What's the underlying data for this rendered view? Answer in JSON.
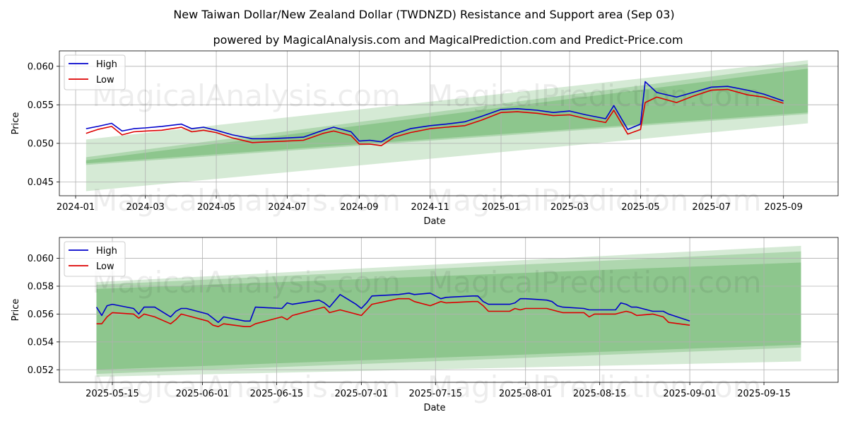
{
  "title": "New Taiwan Dollar/New Zealand Dollar (TWDNZD) Resistance and Support area (Sep 03)",
  "subtitle": "powered by MagicalAnalysis.com and MagicalPrediction.com and Predict-Price.com",
  "watermarks": [
    "MagicalAnalysis.com",
    "MagicalPrediction.com"
  ],
  "colors": {
    "high": "#0000cc",
    "low": "#dd0000",
    "band": "#3f9f3f",
    "grid": "#b0b0b0"
  },
  "chart_data": [
    {
      "type": "line",
      "xlabel": "Date",
      "ylabel": "Price",
      "x_type": "date",
      "xlim": [
        "2023-12-18",
        "2025-10-18"
      ],
      "ylim": [
        0.0432,
        0.062
      ],
      "x_ticks": [
        "2024-01-01",
        "2024-03-01",
        "2024-05-01",
        "2024-07-01",
        "2024-09-01",
        "2024-11-01",
        "2025-01-01",
        "2025-03-01",
        "2025-05-01",
        "2025-07-01",
        "2025-09-01"
      ],
      "x_tick_labels": [
        "2024-01",
        "2024-03",
        "2024-05",
        "2024-07",
        "2024-09",
        "2024-11",
        "2025-01",
        "2025-03",
        "2025-05",
        "2025-07",
        "2025-09"
      ],
      "y_ticks": [
        0.045,
        0.05,
        0.055,
        0.06
      ],
      "y_tick_labels": [
        "0.045",
        "0.050",
        "0.055",
        "0.060"
      ],
      "grid": true,
      "legend": {
        "position": "top-left",
        "entries": [
          "High",
          "Low"
        ]
      },
      "bands": [
        {
          "x": [
            "2024-01-10",
            "2025-09-22"
          ],
          "upper": [
            0.0505,
            0.0608
          ],
          "lower": [
            0.0438,
            0.0526
          ],
          "opacity": 0.22
        },
        {
          "x": [
            "2024-01-10",
            "2025-09-22"
          ],
          "upper": [
            0.0482,
            0.0603
          ],
          "lower": [
            0.0472,
            0.0538
          ],
          "opacity": 0.25
        },
        {
          "x": [
            "2024-01-10",
            "2025-09-22"
          ],
          "upper": [
            0.0478,
            0.0597
          ],
          "lower": [
            0.0474,
            0.054
          ],
          "opacity": 0.3
        }
      ],
      "series": [
        {
          "name": "High",
          "x": [
            "2024-01-10",
            "2024-01-20",
            "2024-02-01",
            "2024-02-10",
            "2024-02-20",
            "2024-03-01",
            "2024-03-15",
            "2024-04-01",
            "2024-04-10",
            "2024-04-20",
            "2024-05-01",
            "2024-05-15",
            "2024-06-01",
            "2024-06-15",
            "2024-07-01",
            "2024-07-15",
            "2024-08-01",
            "2024-08-10",
            "2024-08-25",
            "2024-09-01",
            "2024-09-10",
            "2024-09-20",
            "2024-10-01",
            "2024-10-15",
            "2024-11-01",
            "2024-11-15",
            "2024-12-01",
            "2024-12-15",
            "2025-01-01",
            "2025-01-15",
            "2025-02-01",
            "2025-02-15",
            "2025-03-01",
            "2025-03-15",
            "2025-04-01",
            "2025-04-08",
            "2025-04-20",
            "2025-05-01",
            "2025-05-05",
            "2025-05-15",
            "2025-06-01",
            "2025-06-15",
            "2025-07-01",
            "2025-07-15",
            "2025-08-01",
            "2025-08-15",
            "2025-09-01"
          ],
          "values": [
            0.0519,
            0.0522,
            0.0526,
            0.0516,
            0.0519,
            0.052,
            0.0522,
            0.0525,
            0.0519,
            0.0521,
            0.0517,
            0.0511,
            0.0506,
            0.0506,
            0.0507,
            0.0508,
            0.0517,
            0.0521,
            0.0515,
            0.0503,
            0.0504,
            0.0502,
            0.0512,
            0.0519,
            0.0523,
            0.0525,
            0.0528,
            0.0535,
            0.0544,
            0.0545,
            0.0543,
            0.054,
            0.0542,
            0.0537,
            0.0532,
            0.0549,
            0.0518,
            0.0525,
            0.058,
            0.0566,
            0.056,
            0.0566,
            0.0573,
            0.0574,
            0.0569,
            0.0564,
            0.0555
          ]
        },
        {
          "name": "Low",
          "x": [
            "2024-01-10",
            "2024-01-20",
            "2024-02-01",
            "2024-02-10",
            "2024-02-20",
            "2024-03-01",
            "2024-03-15",
            "2024-04-01",
            "2024-04-10",
            "2024-04-20",
            "2024-05-01",
            "2024-05-15",
            "2024-06-01",
            "2024-06-15",
            "2024-07-01",
            "2024-07-15",
            "2024-08-01",
            "2024-08-10",
            "2024-08-25",
            "2024-09-01",
            "2024-09-10",
            "2024-09-20",
            "2024-10-01",
            "2024-10-15",
            "2024-11-01",
            "2024-11-15",
            "2024-12-01",
            "2024-12-15",
            "2025-01-01",
            "2025-01-15",
            "2025-02-01",
            "2025-02-15",
            "2025-03-01",
            "2025-03-15",
            "2025-04-01",
            "2025-04-08",
            "2025-04-20",
            "2025-05-01",
            "2025-05-05",
            "2025-05-15",
            "2025-06-01",
            "2025-06-15",
            "2025-07-01",
            "2025-07-15",
            "2025-08-01",
            "2025-08-15",
            "2025-09-01"
          ],
          "values": [
            0.0513,
            0.0518,
            0.0522,
            0.0511,
            0.0515,
            0.0516,
            0.0517,
            0.0521,
            0.0515,
            0.0517,
            0.0514,
            0.0507,
            0.0501,
            0.0502,
            0.0503,
            0.0504,
            0.0513,
            0.0516,
            0.051,
            0.0499,
            0.0499,
            0.0497,
            0.0508,
            0.0514,
            0.0519,
            0.0521,
            0.0523,
            0.053,
            0.054,
            0.0541,
            0.0539,
            0.0536,
            0.0537,
            0.0532,
            0.0527,
            0.0543,
            0.0512,
            0.0518,
            0.0553,
            0.056,
            0.0553,
            0.0561,
            0.0569,
            0.057,
            0.0563,
            0.056,
            0.0552
          ]
        }
      ]
    },
    {
      "type": "line",
      "xlabel": "Date",
      "ylabel": "Price",
      "x_type": "date",
      "xlim": [
        "2025-05-05",
        "2025-09-29"
      ],
      "ylim": [
        0.0511,
        0.0615
      ],
      "x_ticks": [
        "2025-05-15",
        "2025-06-01",
        "2025-06-15",
        "2025-07-01",
        "2025-07-15",
        "2025-08-01",
        "2025-08-15",
        "2025-09-01",
        "2025-09-15"
      ],
      "x_tick_labels": [
        "2025-05-15",
        "2025-06-01",
        "2025-06-15",
        "2025-07-01",
        "2025-07-15",
        "2025-08-01",
        "2025-08-15",
        "2025-09-01",
        "2025-09-15"
      ],
      "y_ticks": [
        0.052,
        0.054,
        0.056,
        0.058,
        0.06
      ],
      "y_tick_labels": [
        "0.052",
        "0.054",
        "0.056",
        "0.058",
        "0.060"
      ],
      "grid": true,
      "legend": {
        "position": "top-left",
        "entries": [
          "High",
          "Low"
        ]
      },
      "bands": [
        {
          "x": [
            "2025-05-12",
            "2025-09-22"
          ],
          "upper": [
            0.0583,
            0.0609
          ],
          "lower": [
            0.0515,
            0.0526
          ],
          "opacity": 0.22
        },
        {
          "x": [
            "2025-05-12",
            "2025-09-22"
          ],
          "upper": [
            0.0581,
            0.0605
          ],
          "lower": [
            0.0517,
            0.0536
          ],
          "opacity": 0.25
        },
        {
          "x": [
            "2025-05-12",
            "2025-09-22"
          ],
          "upper": [
            0.0578,
            0.0597
          ],
          "lower": [
            0.052,
            0.0538
          ],
          "opacity": 0.3
        }
      ],
      "series": [
        {
          "name": "High",
          "x": [
            "2025-05-12",
            "2025-05-13",
            "2025-05-14",
            "2025-05-15",
            "2025-05-19",
            "2025-05-20",
            "2025-05-21",
            "2025-05-23",
            "2025-05-26",
            "2025-05-27",
            "2025-05-28",
            "2025-05-29",
            "2025-06-02",
            "2025-06-03",
            "2025-06-04",
            "2025-06-05",
            "2025-06-09",
            "2025-06-10",
            "2025-06-11",
            "2025-06-16",
            "2025-06-17",
            "2025-06-18",
            "2025-06-23",
            "2025-06-24",
            "2025-06-25",
            "2025-06-27",
            "2025-06-30",
            "2025-07-01",
            "2025-07-02",
            "2025-07-03",
            "2025-07-08",
            "2025-07-10",
            "2025-07-11",
            "2025-07-14",
            "2025-07-16",
            "2025-07-17",
            "2025-07-22",
            "2025-07-23",
            "2025-07-24",
            "2025-07-25",
            "2025-07-29",
            "2025-07-30",
            "2025-07-31",
            "2025-08-01",
            "2025-08-05",
            "2025-08-06",
            "2025-08-07",
            "2025-08-08",
            "2025-08-12",
            "2025-08-13",
            "2025-08-14",
            "2025-08-18",
            "2025-08-19",
            "2025-08-20",
            "2025-08-21",
            "2025-08-22",
            "2025-08-25",
            "2025-08-27",
            "2025-08-28",
            "2025-09-01"
          ],
          "values": [
            0.0565,
            0.0559,
            0.0566,
            0.0567,
            0.0564,
            0.056,
            0.0565,
            0.0565,
            0.0558,
            0.0562,
            0.0564,
            0.0564,
            0.056,
            0.0557,
            0.0554,
            0.0558,
            0.0555,
            0.0555,
            0.0565,
            0.0564,
            0.0568,
            0.0567,
            0.057,
            0.0568,
            0.0565,
            0.0574,
            0.0567,
            0.0564,
            0.0568,
            0.0573,
            0.0574,
            0.0575,
            0.0574,
            0.0575,
            0.0571,
            0.0572,
            0.0573,
            0.0573,
            0.0569,
            0.0567,
            0.0567,
            0.0568,
            0.0571,
            0.0571,
            0.057,
            0.0569,
            0.0566,
            0.0565,
            0.0564,
            0.0563,
            0.0563,
            0.0563,
            0.0568,
            0.0567,
            0.0565,
            0.0565,
            0.0562,
            0.0562,
            0.056,
            0.0555
          ]
        },
        {
          "name": "Low",
          "x": [
            "2025-05-12",
            "2025-05-13",
            "2025-05-14",
            "2025-05-15",
            "2025-05-19",
            "2025-05-20",
            "2025-05-21",
            "2025-05-23",
            "2025-05-26",
            "2025-05-27",
            "2025-05-28",
            "2025-05-29",
            "2025-06-02",
            "2025-06-03",
            "2025-06-04",
            "2025-06-05",
            "2025-06-09",
            "2025-06-10",
            "2025-06-11",
            "2025-06-16",
            "2025-06-17",
            "2025-06-18",
            "2025-06-23",
            "2025-06-24",
            "2025-06-25",
            "2025-06-27",
            "2025-06-30",
            "2025-07-01",
            "2025-07-02",
            "2025-07-03",
            "2025-07-08",
            "2025-07-10",
            "2025-07-11",
            "2025-07-14",
            "2025-07-16",
            "2025-07-17",
            "2025-07-22",
            "2025-07-23",
            "2025-07-24",
            "2025-07-25",
            "2025-07-29",
            "2025-07-30",
            "2025-07-31",
            "2025-08-01",
            "2025-08-05",
            "2025-08-06",
            "2025-08-07",
            "2025-08-08",
            "2025-08-12",
            "2025-08-13",
            "2025-08-14",
            "2025-08-18",
            "2025-08-19",
            "2025-08-20",
            "2025-08-21",
            "2025-08-22",
            "2025-08-25",
            "2025-08-27",
            "2025-08-28",
            "2025-09-01"
          ],
          "values": [
            0.0553,
            0.0553,
            0.0558,
            0.0561,
            0.056,
            0.0557,
            0.056,
            0.0558,
            0.0553,
            0.0556,
            0.056,
            0.0559,
            0.0555,
            0.0552,
            0.0551,
            0.0553,
            0.0551,
            0.0551,
            0.0553,
            0.0558,
            0.0556,
            0.0559,
            0.0564,
            0.0565,
            0.0561,
            0.0563,
            0.056,
            0.0559,
            0.0563,
            0.0567,
            0.0571,
            0.0571,
            0.0569,
            0.0566,
            0.0569,
            0.0568,
            0.0569,
            0.0569,
            0.0566,
            0.0562,
            0.0562,
            0.0564,
            0.0563,
            0.0564,
            0.0564,
            0.0563,
            0.0562,
            0.0561,
            0.0561,
            0.0558,
            0.056,
            0.056,
            0.0561,
            0.0562,
            0.0561,
            0.0559,
            0.056,
            0.0558,
            0.0554,
            0.0552
          ]
        }
      ]
    }
  ]
}
